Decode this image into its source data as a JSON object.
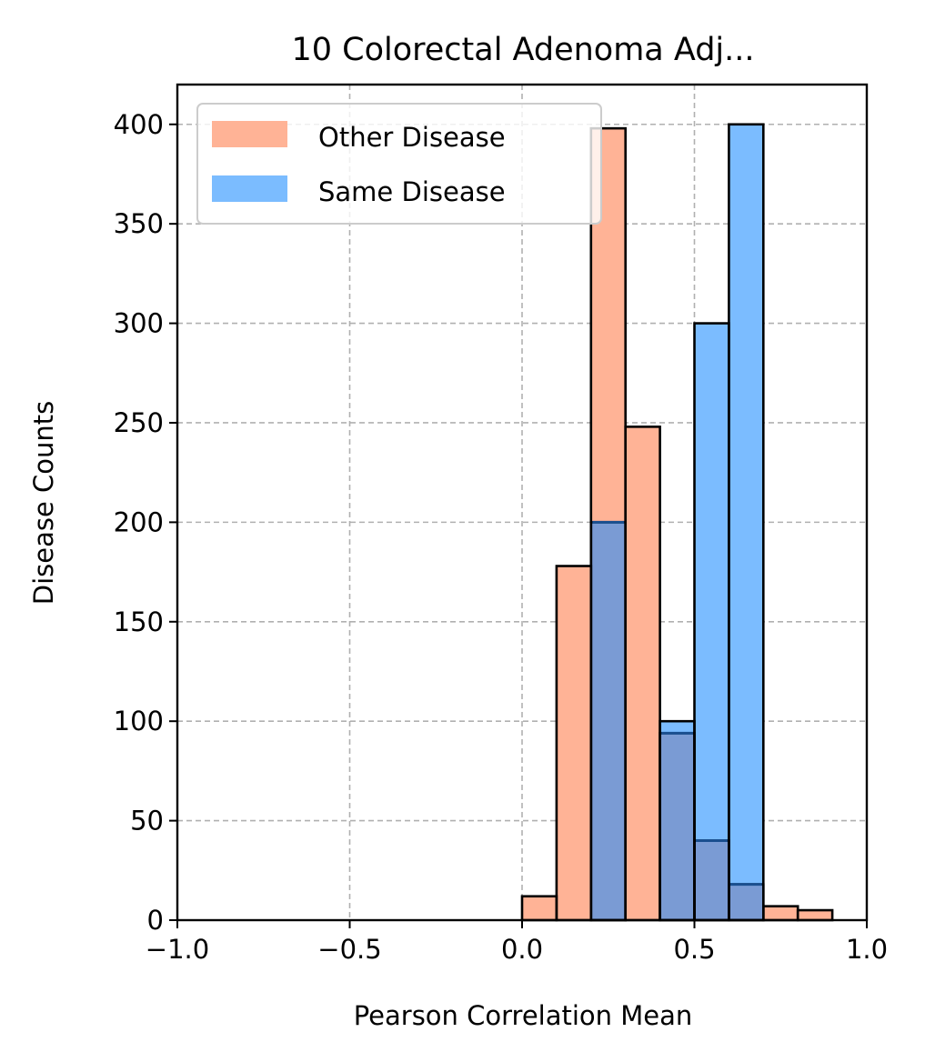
{
  "chart_data": {
    "type": "bar",
    "title": "10 Colorectal Adenoma Adj...",
    "xlabel": "Pearson Correlation Mean",
    "ylabel": "Disease Counts",
    "xlim": [
      -1.0,
      1.0
    ],
    "ylim": [
      0,
      420
    ],
    "xticks": [
      -1.0,
      -0.5,
      0.0,
      0.5,
      1.0
    ],
    "xtick_labels": [
      "−1.0",
      "−0.5",
      "0.0",
      "0.5",
      "1.0"
    ],
    "yticks": [
      0,
      50,
      100,
      150,
      200,
      250,
      300,
      350,
      400
    ],
    "ytick_labels": [
      "0",
      "50",
      "100",
      "150",
      "200",
      "250",
      "300",
      "350",
      "400"
    ],
    "grid": true,
    "legend_position": "top-left",
    "bin_edges": [
      0.0,
      0.1,
      0.2,
      0.3,
      0.4,
      0.5,
      0.6,
      0.7,
      0.8,
      0.9
    ],
    "series": [
      {
        "name": "Other Disease",
        "color": "#ffb396",
        "values": [
          12,
          178,
          398,
          248,
          94,
          40,
          18,
          7,
          5
        ]
      },
      {
        "name": "Same Disease",
        "color": "#7bbcff",
        "values": [
          0,
          0,
          200,
          0,
          100,
          300,
          400,
          0,
          0
        ]
      }
    ],
    "overlap_color": "#7a9bd4"
  }
}
